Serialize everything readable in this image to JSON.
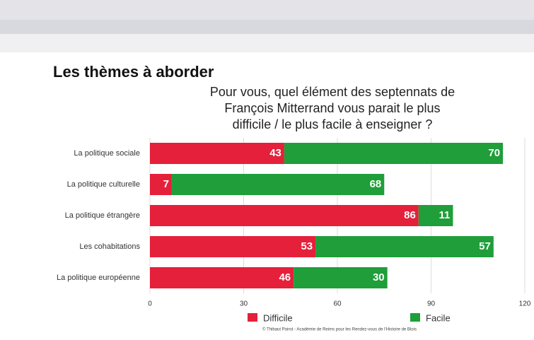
{
  "chart_data": {
    "type": "stacked-bar-horizontal",
    "title": "Les thèmes à aborder",
    "subtitle": [
      "Pour vous, quel élément des septennats de",
      "François Mitterrand vous parait le plus",
      "difficile / le plus facile à enseigner ?"
    ],
    "categories": [
      "La politique sociale",
      "La politique culturelle",
      "La politique étrangère",
      "Les cohabitations",
      "La politique européenne"
    ],
    "series": [
      {
        "name": "Difficile",
        "color": "#e5203a",
        "values": [
          43,
          7,
          86,
          53,
          46
        ]
      },
      {
        "name": "Facile",
        "color": "#1f9e3a",
        "values": [
          70,
          68,
          11,
          57,
          30
        ]
      }
    ],
    "xlim": [
      0,
      120
    ],
    "xticks": [
      0,
      30,
      60,
      90,
      120
    ],
    "grid": true,
    "source": "© Thibaut Poirot - Académie de Reims pour les Rendez-vous de l'Histoire de Blois"
  }
}
